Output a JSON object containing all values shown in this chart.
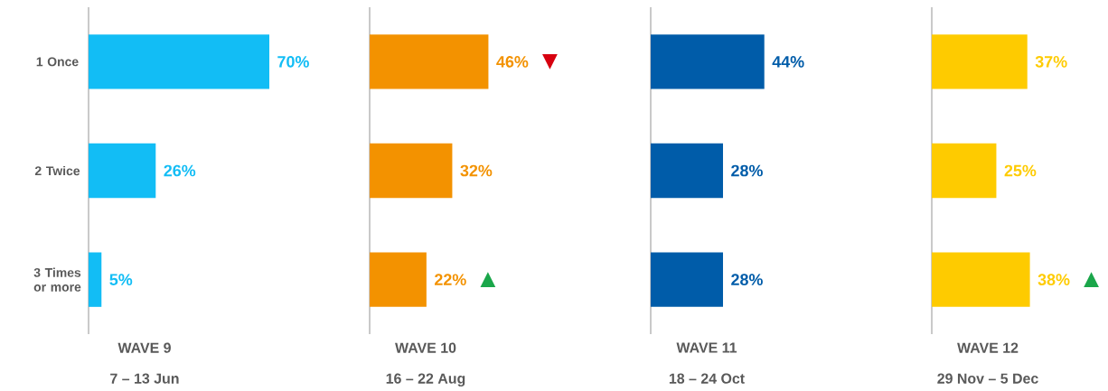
{
  "chart_data": [
    {
      "type": "bar",
      "orientation": "horizontal",
      "categories": [
        "1 Once",
        "2 Twice",
        "3 Times or more"
      ],
      "values": [
        70,
        26,
        5
      ],
      "color": "#12bdf5",
      "value_labels": [
        "70%",
        "26%",
        "5%"
      ],
      "xlabel": "WAVE 9",
      "subtitle": "7 – 13 Jun",
      "tick_labels": "y"
    },
    {
      "type": "bar",
      "orientation": "horizontal",
      "categories": [
        "1 Once",
        "2 Twice",
        "3 Times or more"
      ],
      "values": [
        46,
        32,
        22
      ],
      "color": "#f39200",
      "value_labels": [
        "46%",
        "32%",
        "22%"
      ],
      "xlabel": "WAVE 10",
      "subtitle": "16 – 22 Aug",
      "tick_labels": false,
      "annotations": [
        {
          "text": "▼",
          "x": 46,
          "y": "1 Once"
        },
        {
          "text": "▲",
          "x": 22,
          "y": "3 Times or more"
        }
      ]
    },
    {
      "type": "bar",
      "orientation": "horizontal",
      "categories": [
        "1 Once",
        "2 Twice",
        "3 Times or more"
      ],
      "values": [
        44,
        28,
        28
      ],
      "color": "#005ca9",
      "value_labels": [
        "44%",
        "28%",
        "28%"
      ],
      "xlabel": "WAVE 11",
      "subtitle": "18 – 24 Oct",
      "tick_labels": false
    },
    {
      "type": "bar",
      "orientation": "horizontal",
      "categories": [
        "1 Once",
        "2 Twice",
        "3 Times or more"
      ],
      "values": [
        37,
        25,
        38
      ],
      "color": "#fecb00",
      "value_labels": [
        "37%",
        "25%",
        "38%"
      ],
      "xlabel": "WAVE 12",
      "subtitle": "29 Nov – 5 Dec",
      "tick_labels": false,
      "annotations": [
        {
          "text": "▲",
          "x": 38,
          "y": "3 Times or more"
        }
      ]
    }
  ]
}
